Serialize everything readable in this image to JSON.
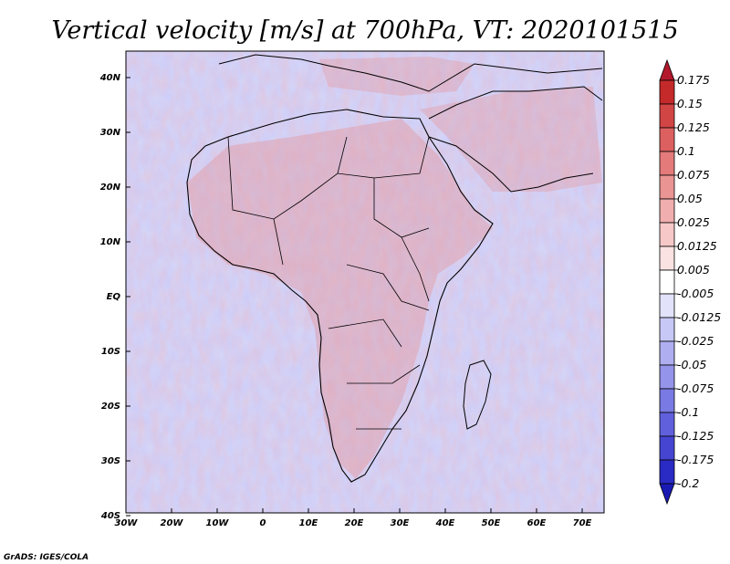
{
  "title": "Vertical velocity [m/s] at 700hPa, VT: 2020101515",
  "credit": "GrADS: IGES/COLA",
  "axes": {
    "lat_labels": [
      "40N",
      "30N",
      "20N",
      "10N",
      "EQ",
      "10S",
      "20S",
      "30S",
      "40S"
    ],
    "lon_labels": [
      "30W",
      "20W",
      "10W",
      "0",
      "10E",
      "20E",
      "30E",
      "40E",
      "50E",
      "60E",
      "70E"
    ]
  },
  "colorbar": {
    "labels": [
      "0.175",
      "0.15",
      "0.125",
      "0.1",
      "0.075",
      "0.05",
      "0.025",
      "0.0125",
      "0.005",
      "-0.005",
      "-0.0125",
      "-0.025",
      "-0.05",
      "-0.075",
      "-0.1",
      "-0.125",
      "-0.175",
      "-0.2"
    ],
    "colors": [
      "#b2182b",
      "#c42a2a",
      "#d24545",
      "#dd6060",
      "#e47a7a",
      "#ea9494",
      "#f0aeae",
      "#f6c8c8",
      "#fbe2e2",
      "#ffffff",
      "#e2e2fb",
      "#c8c8f6",
      "#aeaef0",
      "#9494ea",
      "#7a7ae4",
      "#6060dd",
      "#4545d2",
      "#2a2ac4",
      "#1a1ab2"
    ]
  },
  "colors": {
    "land_mix": "#c9b8d6",
    "ocean_mix": "#b7b7f0",
    "border": "#000000"
  }
}
